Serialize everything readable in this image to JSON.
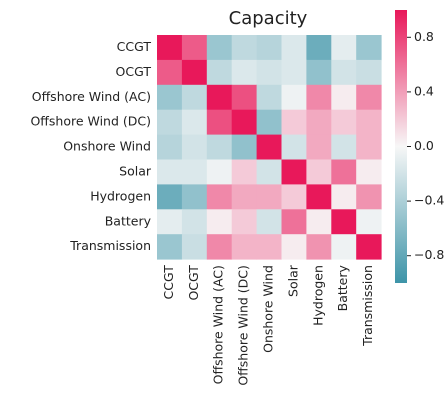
{
  "chart_data": {
    "type": "heatmap",
    "title": "Capacity",
    "categories": [
      "CCGT",
      "OCGT",
      "Offshore Wind (AC)",
      "Offshore Wind (DC)",
      "Onshore Wind",
      "Solar",
      "Hydrogen",
      "Battery",
      "Transmission"
    ],
    "values": [
      [
        1,
        0.7,
        -0.5,
        -0.3,
        -0.35,
        -0.15,
        -0.75,
        -0.1,
        -0.5
      ],
      [
        0.7,
        1,
        -0.3,
        -0.15,
        -0.2,
        -0.15,
        -0.55,
        -0.2,
        -0.25
      ],
      [
        -0.5,
        -0.3,
        1,
        0.75,
        -0.3,
        -0.05,
        0.5,
        0.05,
        0.5
      ],
      [
        -0.3,
        -0.15,
        0.75,
        1,
        -0.55,
        0.2,
        0.35,
        0.2,
        0.3
      ],
      [
        -0.35,
        -0.2,
        -0.3,
        -0.55,
        1,
        -0.2,
        0.35,
        -0.2,
        0.3
      ],
      [
        -0.15,
        -0.15,
        -0.05,
        0.2,
        -0.2,
        1,
        0.2,
        0.6,
        0.05
      ],
      [
        -0.75,
        -0.55,
        0.5,
        0.35,
        0.35,
        0.2,
        1,
        0.05,
        0.45
      ],
      [
        -0.1,
        -0.2,
        0.05,
        0.2,
        -0.2,
        0.6,
        0.05,
        1,
        -0.05
      ],
      [
        -0.5,
        -0.25,
        0.5,
        0.3,
        0.3,
        0.05,
        0.45,
        -0.05,
        1
      ]
    ],
    "clim": [
      -1,
      1
    ],
    "cticks": [
      0.8,
      0.4,
      {
        "value": 0,
        "label": "0.0"
      },
      {
        "value": -0.4,
        "label": "−0.4"
      },
      {
        "value": -0.8,
        "label": "−0.8"
      }
    ],
    "colormap": [
      "#3d94a8",
      "#f7f7f7",
      "#e8185a"
    ]
  }
}
